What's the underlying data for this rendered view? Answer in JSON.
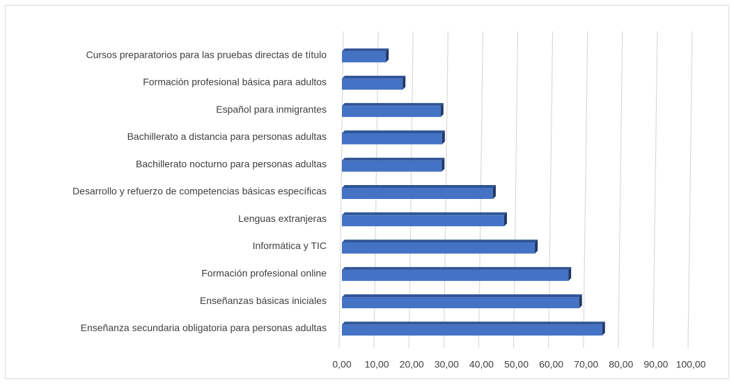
{
  "chart_data": {
    "type": "bar",
    "orientation": "horizontal",
    "categories": [
      "Cursos preparatorios para las pruebas directas de título",
      "Formación profesional básica para adultos",
      "Español para inmigrantes",
      "Bachillerato a distancia para personas adultas",
      "Bachillerato nocturno para personas adultas",
      "Desarrollo y refuerzo de competencias básicas específicas",
      "Lenguas extranjeras",
      "Informática y TIC",
      "Formación profesional online",
      "Enseñanzas básicas iniciales",
      "Enseñanza secundaria obligatoria para personas adultas"
    ],
    "values": [
      12.6,
      17.4,
      28.3,
      28.7,
      28.6,
      43.3,
      46.5,
      55.3,
      64.9,
      68.0,
      74.6
    ],
    "color": "#4472c4",
    "xlim": [
      0,
      100
    ],
    "xticks": [
      {
        "value": 0,
        "label": "0,00"
      },
      {
        "value": 10,
        "label": "10,00"
      },
      {
        "value": 20,
        "label": "20,00"
      },
      {
        "value": 30,
        "label": "30,00"
      },
      {
        "value": 40,
        "label": "40,00"
      },
      {
        "value": 50,
        "label": "50,00"
      },
      {
        "value": 60,
        "label": "60,00"
      },
      {
        "value": 70,
        "label": "70,00"
      },
      {
        "value": 80,
        "label": "80,00"
      },
      {
        "value": 90,
        "label": "90,00"
      },
      {
        "value": 100,
        "label": "100,00"
      }
    ],
    "grid": true
  }
}
